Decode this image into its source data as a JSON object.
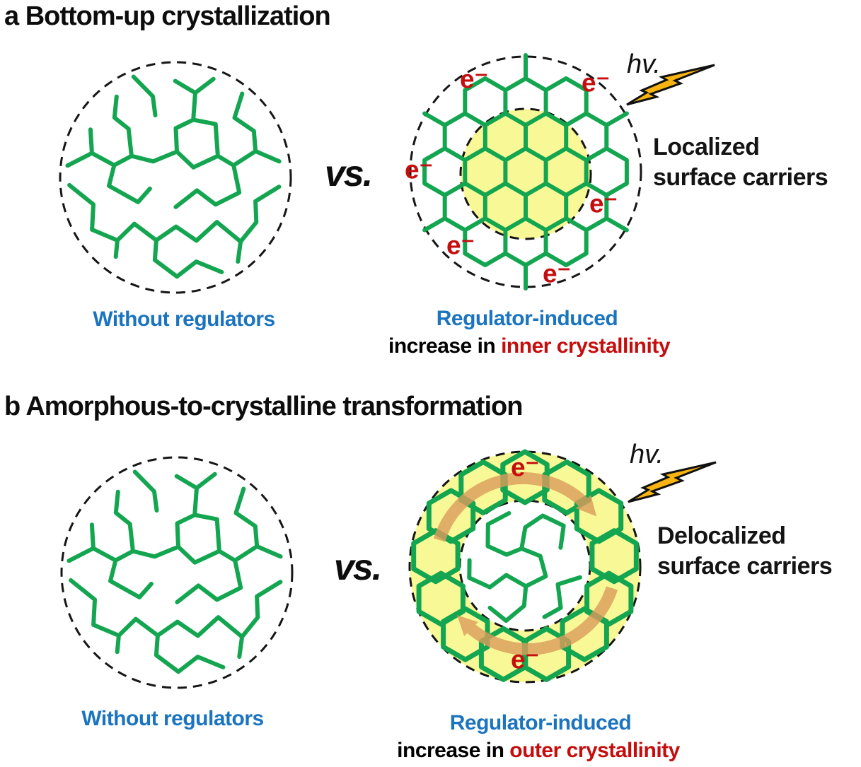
{
  "colors": {
    "network_green": "#14a551",
    "core_yellow": "#f8f996",
    "label_blue": "#1b74bf",
    "label_red": "#c60d0d",
    "bolt_orange": "#f9b412",
    "arrow_tan": "#dc9c5c"
  },
  "panel_a": {
    "title": "a Bottom-up crystallization",
    "vs_label": "vs.",
    "left_caption": "Without regulators",
    "electron_label": "e⁻",
    "hv_label": "hv.",
    "side_label_line1": "Localized",
    "side_label_line2": "surface carriers",
    "caption_line1": "Regulator-induced",
    "caption_line2_prefix": "increase in ",
    "caption_line2_highlight": "inner crystallinity"
  },
  "panel_b": {
    "title": "b Amorphous-to-crystalline transformation",
    "vs_label": "vs.",
    "left_caption": "Without regulators",
    "electron_label": "e⁻",
    "hv_label": "hv.",
    "side_label_line1": "Delocalized",
    "side_label_line2": "surface carriers",
    "caption_line1": "Regulator-induced",
    "caption_line2_prefix": "increase in ",
    "caption_line2_highlight": "outer crystallinity"
  }
}
